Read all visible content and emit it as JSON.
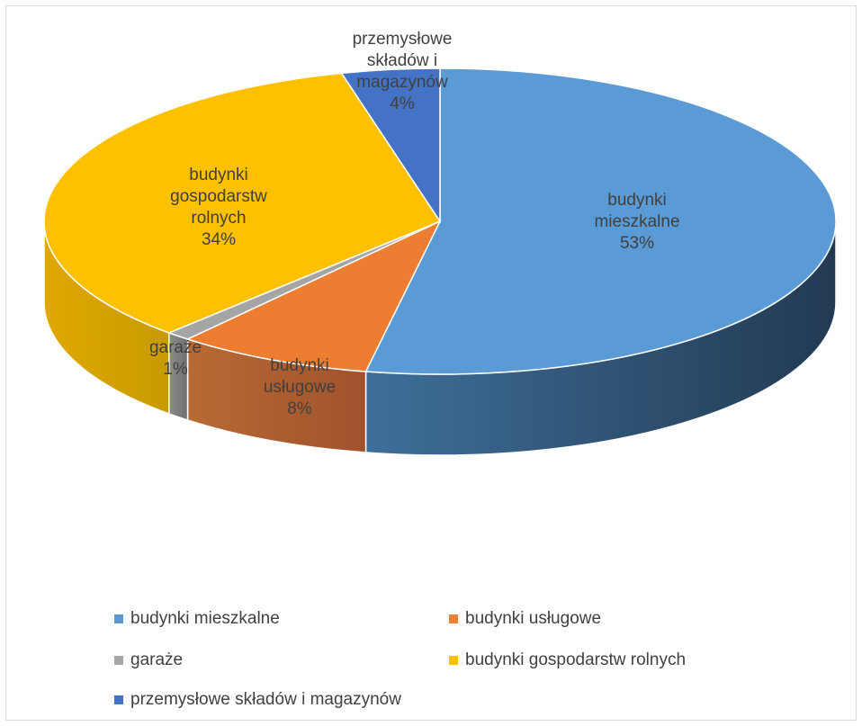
{
  "chart_data": {
    "type": "pie",
    "style": "3d",
    "slices": [
      {
        "name": "budynki mieszkalne",
        "value": 53,
        "label_lines": [
          "budynki",
          "mieszkalne",
          "53%"
        ],
        "color": "#5b9bd5",
        "side_color": "#2e4a63"
      },
      {
        "name": "budynki usługowe",
        "value": 8,
        "label_lines": [
          "budynki",
          "usługowe",
          "8%"
        ],
        "color": "#ed7d31",
        "side_color": "#a9582a"
      },
      {
        "name": "garaże",
        "value": 1,
        "label_lines": [
          "garaże",
          "1%"
        ],
        "color": "#a5a5a5",
        "side_color": "#7a7a7a"
      },
      {
        "name": "budynki gospodarstw rolnych",
        "value": 34,
        "label_lines": [
          "budynki",
          "gospodarstw",
          "rolnych",
          "34%"
        ],
        "color": "#ffc000",
        "side_color": "#c89a00"
      },
      {
        "name": "przemysłowe składów i magazynów",
        "value": 4,
        "label_lines": [
          "przemysłowe",
          "składów i",
          "magazynów",
          "4%"
        ],
        "color": "#4472c4",
        "side_color": "#2f5597"
      }
    ],
    "legend_position": "bottom"
  },
  "legend": {
    "items": [
      {
        "label": "budynki mieszkalne",
        "color": "#5b9bd5"
      },
      {
        "label": "budynki usługowe",
        "color": "#ed7d31"
      },
      {
        "label": "garaże",
        "color": "#a5a5a5"
      },
      {
        "label": "budynki gospodarstw rolnych",
        "color": "#ffc000"
      },
      {
        "label": "przemysłowe składów i magazynów",
        "color": "#4472c4"
      }
    ]
  }
}
